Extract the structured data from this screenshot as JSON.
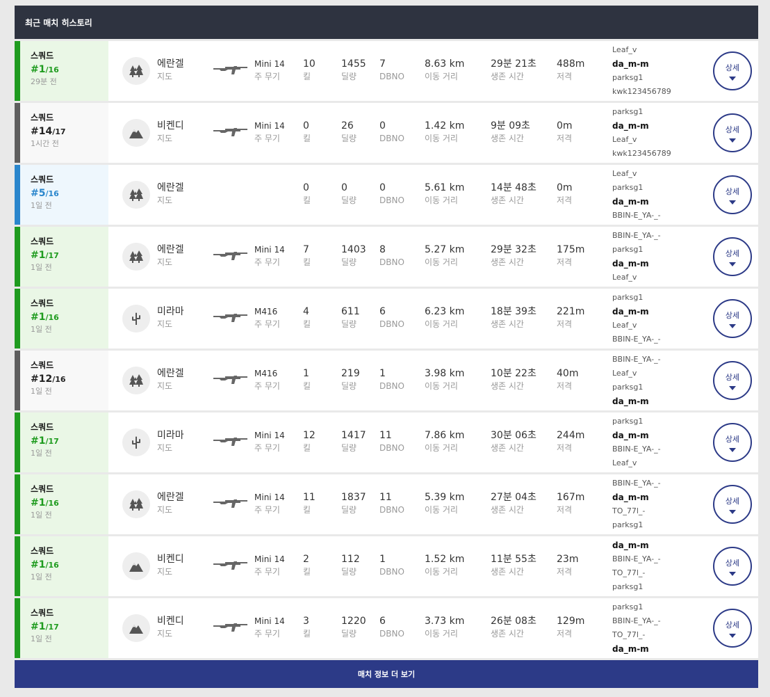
{
  "header": {
    "title": "최근 매치 히스토리"
  },
  "labels": {
    "map": "지도",
    "weapon": "주 무기",
    "kills": "킬",
    "damage": "딜량",
    "dbno": "DBNO",
    "distance": "이동 거리",
    "survival": "생존 시간",
    "snipe": "저격",
    "detail": "상세"
  },
  "colors": {
    "win": "#1f9b1f",
    "top5": "#2a86cc",
    "lose": "#5e5e5e",
    "header_bg": "#2e3340",
    "accent": "#2c3a87"
  },
  "matches": [
    {
      "result": "win",
      "mode": "스쿼드",
      "rank": "#1",
      "total": "/16",
      "ago": "29분 전",
      "map": "에란겔",
      "map_icon": "trees-icon",
      "weapon": "Mini 14",
      "kills": "10",
      "damage": "1455",
      "dbno": "7",
      "distance": "8.63 km",
      "survival": "29분 21초",
      "snipe": "488m",
      "team": [
        "Leaf_v",
        "da_m-m",
        "parksg1",
        "kwk123456789"
      ]
    },
    {
      "result": "lose",
      "mode": "스쿼드",
      "rank": "#14",
      "total": "/17",
      "ago": "1시간 전",
      "map": "비켄디",
      "map_icon": "mountain-icon",
      "weapon": "Mini 14",
      "kills": "0",
      "damage": "26",
      "dbno": "0",
      "distance": "1.42 km",
      "survival": "9분 09초",
      "snipe": "0m",
      "team": [
        "parksg1",
        "da_m-m",
        "Leaf_v",
        "kwk123456789"
      ]
    },
    {
      "result": "top5",
      "mode": "스쿼드",
      "rank": "#5",
      "total": "/16",
      "ago": "1일 전",
      "map": "에란겔",
      "map_icon": "trees-icon",
      "weapon": "",
      "kills": "0",
      "damage": "0",
      "dbno": "0",
      "distance": "5.61 km",
      "survival": "14분 48초",
      "snipe": "0m",
      "team": [
        "Leaf_v",
        "parksg1",
        "da_m-m",
        "BBIN-E_YA-_-"
      ]
    },
    {
      "result": "win",
      "mode": "스쿼드",
      "rank": "#1",
      "total": "/17",
      "ago": "1일 전",
      "map": "에란겔",
      "map_icon": "trees-icon",
      "weapon": "Mini 14",
      "kills": "7",
      "damage": "1403",
      "dbno": "8",
      "distance": "5.27 km",
      "survival": "29분 32초",
      "snipe": "175m",
      "team": [
        "BBIN-E_YA-_-",
        "parksg1",
        "da_m-m",
        "Leaf_v"
      ]
    },
    {
      "result": "win",
      "mode": "스쿼드",
      "rank": "#1",
      "total": "/16",
      "ago": "1일 전",
      "map": "미라마",
      "map_icon": "cactus-icon",
      "weapon": "M416",
      "kills": "4",
      "damage": "611",
      "dbno": "6",
      "distance": "6.23 km",
      "survival": "18분 39초",
      "snipe": "221m",
      "team": [
        "parksg1",
        "da_m-m",
        "Leaf_v",
        "BBIN-E_YA-_-"
      ]
    },
    {
      "result": "lose",
      "mode": "스쿼드",
      "rank": "#12",
      "total": "/16",
      "ago": "1일 전",
      "map": "에란겔",
      "map_icon": "trees-icon",
      "weapon": "M416",
      "kills": "1",
      "damage": "219",
      "dbno": "1",
      "distance": "3.98 km",
      "survival": "10분 22초",
      "snipe": "40m",
      "team": [
        "BBIN-E_YA-_-",
        "Leaf_v",
        "parksg1",
        "da_m-m"
      ]
    },
    {
      "result": "win",
      "mode": "스쿼드",
      "rank": "#1",
      "total": "/17",
      "ago": "1일 전",
      "map": "미라마",
      "map_icon": "cactus-icon",
      "weapon": "Mini 14",
      "kills": "12",
      "damage": "1417",
      "dbno": "11",
      "distance": "7.86 km",
      "survival": "30분 06초",
      "snipe": "244m",
      "team": [
        "parksg1",
        "da_m-m",
        "BBIN-E_YA-_-",
        "Leaf_v"
      ]
    },
    {
      "result": "win",
      "mode": "스쿼드",
      "rank": "#1",
      "total": "/16",
      "ago": "1일 전",
      "map": "에란겔",
      "map_icon": "trees-icon",
      "weapon": "Mini 14",
      "kills": "11",
      "damage": "1837",
      "dbno": "11",
      "distance": "5.39 km",
      "survival": "27분 04초",
      "snipe": "167m",
      "team": [
        "BBIN-E_YA-_-",
        "da_m-m",
        "TO_77l_-",
        "parksg1"
      ]
    },
    {
      "result": "win",
      "mode": "스쿼드",
      "rank": "#1",
      "total": "/16",
      "ago": "1일 전",
      "map": "비켄디",
      "map_icon": "mountain-icon",
      "weapon": "Mini 14",
      "kills": "2",
      "damage": "112",
      "dbno": "1",
      "distance": "1.52 km",
      "survival": "11분 55초",
      "snipe": "23m",
      "team": [
        "da_m-m",
        "BBIN-E_YA-_-",
        "TO_77l_-",
        "parksg1"
      ]
    },
    {
      "result": "win",
      "mode": "스쿼드",
      "rank": "#1",
      "total": "/17",
      "ago": "1일 전",
      "map": "비켄디",
      "map_icon": "mountain-icon",
      "weapon": "Mini 14",
      "kills": "3",
      "damage": "1220",
      "dbno": "6",
      "distance": "3.73 km",
      "survival": "26분 08초",
      "snipe": "129m",
      "team": [
        "parksg1",
        "BBIN-E_YA-_-",
        "TO_77l_-",
        "da_m-m"
      ]
    }
  ],
  "me": "da_m-m",
  "more_button": "매치 정보 더 보기"
}
